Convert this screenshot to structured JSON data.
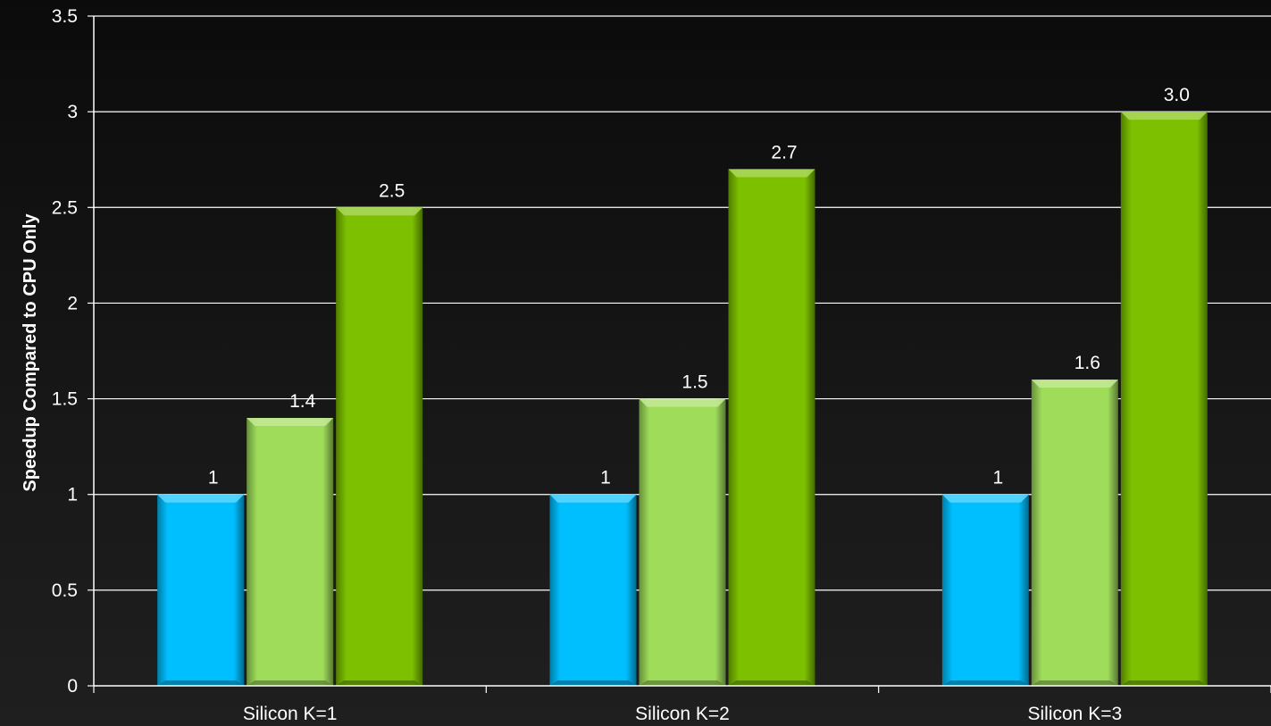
{
  "chart_data": {
    "type": "bar",
    "title": "",
    "xlabel": "",
    "ylabel": "Speedup Compared to CPU Only",
    "categories": [
      "Silicon K=1",
      "Silicon K=2",
      "Silicon K=3"
    ],
    "series": [
      {
        "values": [
          1,
          1,
          1
        ],
        "labels": [
          "1",
          "1",
          "1"
        ],
        "color": "#00bfff"
      },
      {
        "values": [
          1.4,
          1.5,
          1.6
        ],
        "labels": [
          "1.4",
          "1.5",
          "1.6"
        ],
        "color": "#9fdc5a"
      },
      {
        "values": [
          2.5,
          2.7,
          3.0
        ],
        "labels": [
          "2.5",
          "2.7",
          "3.0"
        ],
        "color": "#7cc000"
      }
    ],
    "ylim": [
      0,
      3.5
    ],
    "yticks": [
      0,
      0.5,
      1,
      1.5,
      2,
      2.5,
      3,
      3.5
    ],
    "ytick_labels": [
      "0",
      "0.5",
      "1",
      "1.5",
      "2",
      "2.5",
      "3",
      "3.5"
    ],
    "grid": true,
    "legend": "none"
  }
}
